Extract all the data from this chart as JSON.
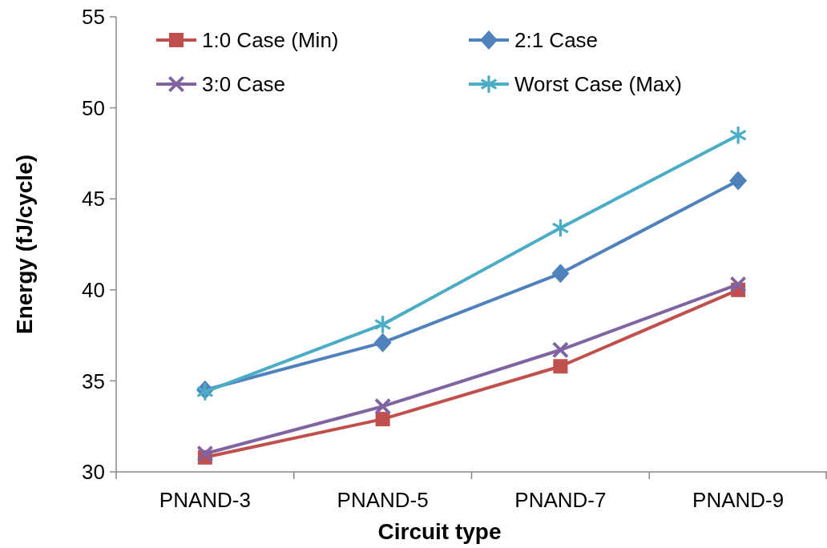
{
  "chart_data": {
    "type": "line",
    "xlabel": "Circuit type",
    "ylabel": "Energy (fJ/cycle)",
    "categories": [
      "PNAND-3",
      "PNAND-5",
      "PNAND-7",
      "PNAND-9"
    ],
    "ylim": [
      30,
      55
    ],
    "yticks": [
      30,
      35,
      40,
      45,
      50,
      55
    ],
    "grid": false,
    "legend": "top left",
    "series": [
      {
        "name": "1:0 Case (Min)",
        "color": "#c0504d",
        "marker": "square",
        "values": [
          30.8,
          32.9,
          35.8,
          40.0
        ]
      },
      {
        "name": "2:1 Case",
        "color": "#4f81bd",
        "marker": "diamond",
        "values": [
          34.5,
          37.1,
          40.9,
          46.0
        ]
      },
      {
        "name": "3:0 Case",
        "color": "#8064a2",
        "marker": "cross",
        "values": [
          31.0,
          33.6,
          36.7,
          40.3
        ]
      },
      {
        "name": "Worst Case (Max)",
        "color": "#4bacc6",
        "marker": "star",
        "values": [
          34.4,
          38.1,
          43.4,
          48.5
        ]
      }
    ]
  }
}
